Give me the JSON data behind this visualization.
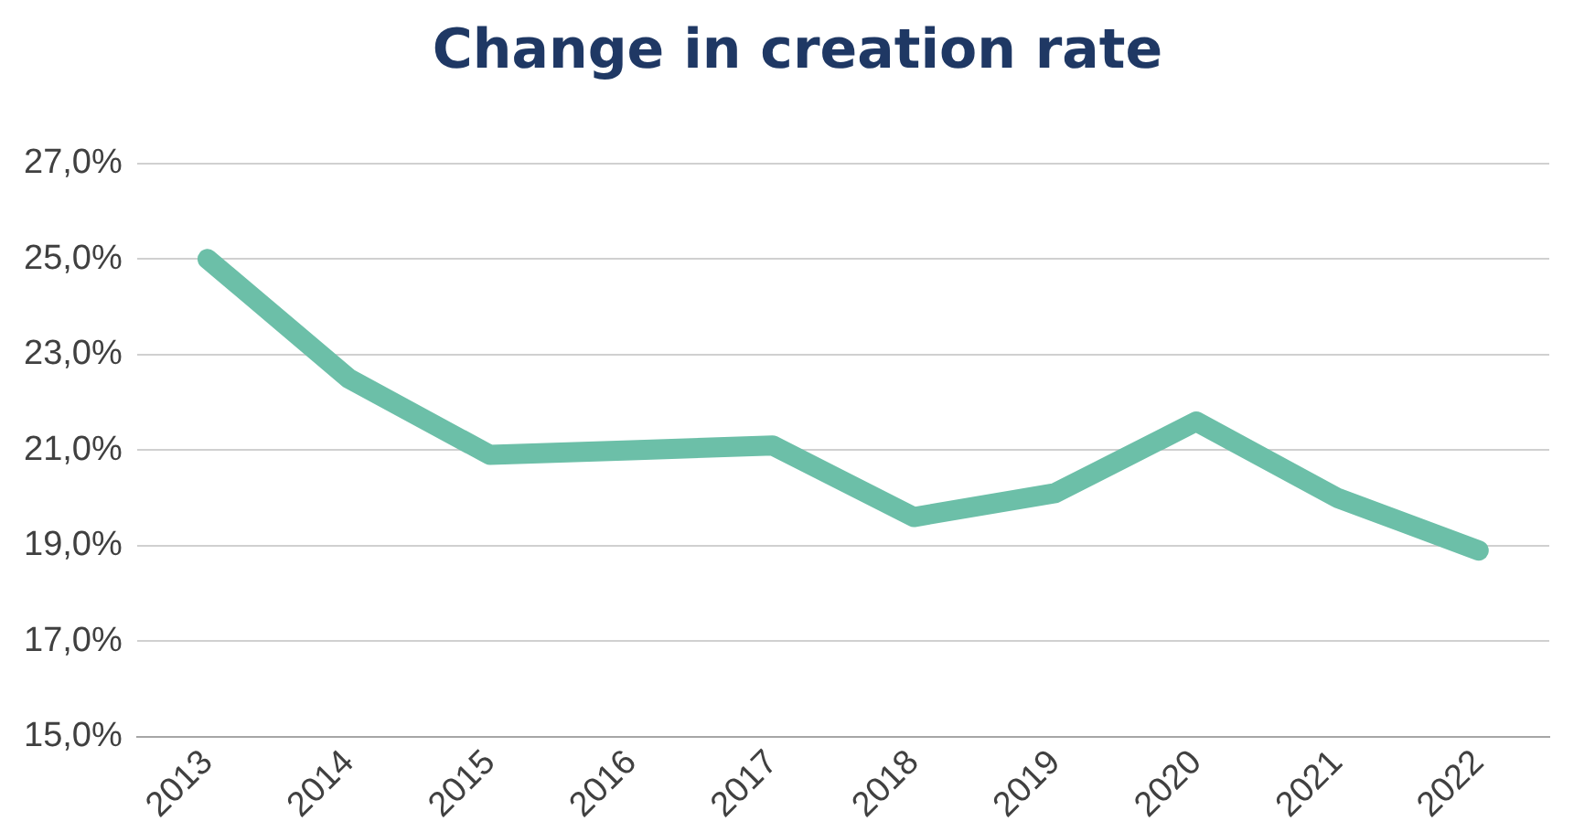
{
  "chart_data": {
    "type": "line",
    "title": "Change in creation rate",
    "categories": [
      "2013",
      "2014",
      "2015",
      "2016",
      "2017",
      "2018",
      "2019",
      "2020",
      "2021",
      "2022"
    ],
    "series": [
      {
        "color": "#6cbfa8",
        "values": [
          25.0,
          22.5,
          20.9,
          21.0,
          21.1,
          19.6,
          20.1,
          21.6,
          20.0,
          18.9
        ]
      }
    ],
    "ylim": [
      15,
      27
    ],
    "yticks": [
      {
        "value": 15,
        "label": "15,0%"
      },
      {
        "value": 17,
        "label": "17,0%"
      },
      {
        "value": 19,
        "label": "19,0%"
      },
      {
        "value": 21,
        "label": "21,0%"
      },
      {
        "value": 23,
        "label": "23,0%"
      },
      {
        "value": 25,
        "label": "25,0%"
      },
      {
        "value": 27,
        "label": "27,0%"
      }
    ],
    "grid": "y",
    "marker": "none",
    "line_style": "solid",
    "legend": false
  }
}
